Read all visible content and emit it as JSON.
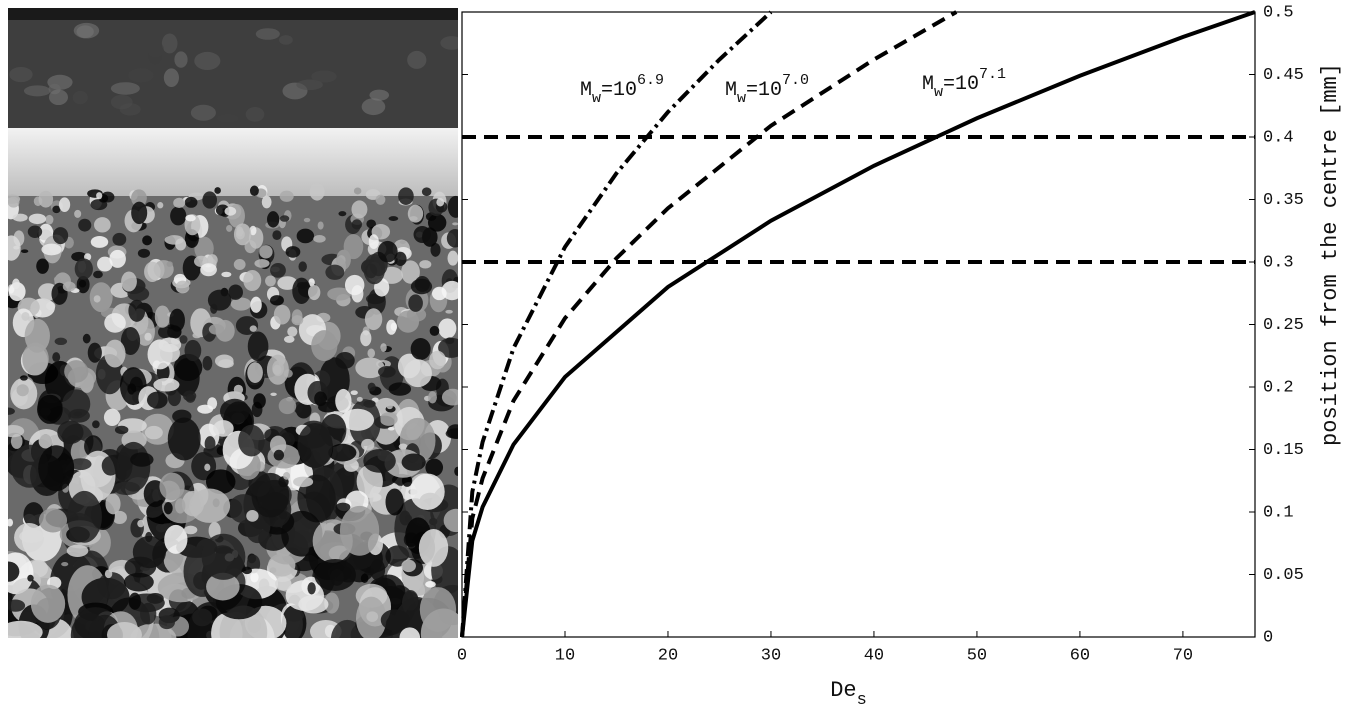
{
  "chart_data": {
    "type": "line",
    "x_label": {
      "main": "De",
      "sub": "s"
    },
    "y_label": "position from the centre [mm]",
    "xlim": [
      0,
      77
    ],
    "xticks": [
      0,
      10,
      20,
      30,
      40,
      50,
      60,
      70
    ],
    "ylim": [
      0,
      0.5
    ],
    "yticks": [
      0,
      0.05,
      0.1,
      0.15,
      0.2,
      0.25,
      0.3,
      0.35,
      0.4,
      0.45,
      0.5
    ],
    "hlines": [
      0.3,
      0.4
    ],
    "series": [
      {
        "label": {
          "main": "M",
          "sub": "w",
          "eq": "=10",
          "sup": "6.9"
        },
        "style": "dashdot",
        "color": "#000000",
        "x": [
          0,
          1,
          2,
          5,
          10,
          15,
          20,
          25,
          30
        ],
        "values": [
          0,
          0.116,
          0.156,
          0.231,
          0.312,
          0.371,
          0.42,
          0.462,
          0.5
        ]
      },
      {
        "label": {
          "main": "M",
          "sub": "w",
          "eq": "=10",
          "sup": "7.0"
        },
        "style": "dashed",
        "color": "#000000",
        "x": [
          0,
          1,
          2,
          5,
          10,
          15,
          20,
          30,
          40,
          48
        ],
        "values": [
          0,
          0.095,
          0.127,
          0.189,
          0.255,
          0.303,
          0.343,
          0.409,
          0.462,
          0.5
        ]
      },
      {
        "label": {
          "main": "M",
          "sub": "w",
          "eq": "=10",
          "sup": "7.1"
        },
        "style": "solid",
        "color": "#000000",
        "x": [
          0,
          1,
          2,
          5,
          10,
          20,
          30,
          40,
          50,
          60,
          70,
          77
        ],
        "values": [
          0,
          0.077,
          0.104,
          0.154,
          0.208,
          0.28,
          0.333,
          0.377,
          0.415,
          0.449,
          0.48,
          0.5
        ]
      }
    ]
  }
}
